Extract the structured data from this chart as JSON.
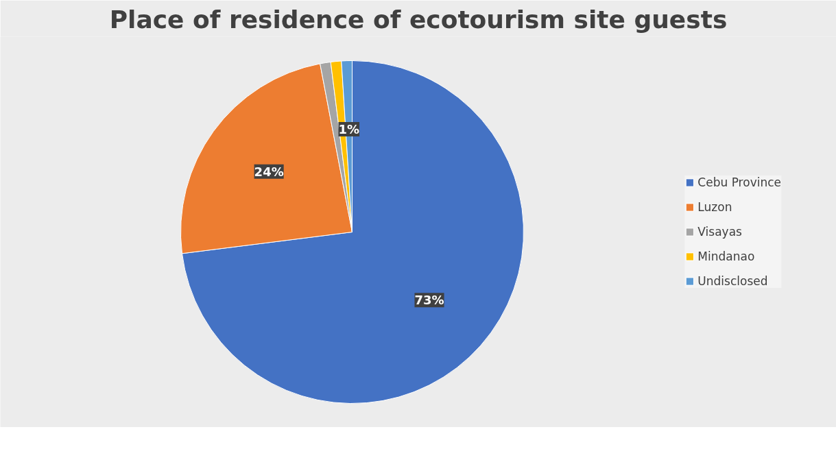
{
  "chart_data": {
    "type": "pie",
    "title": "Place of residence of ecotourism site guests",
    "categories": [
      "Cebu Province",
      "Luzon",
      "Visayas",
      "Mindanao",
      "Undisclosed"
    ],
    "values": [
      73,
      24,
      1,
      1,
      1
    ],
    "colors": [
      "#4472c4",
      "#ed7d31",
      "#a5a5a5",
      "#ffc000",
      "#5b9bd5"
    ],
    "value_labels": [
      "73%",
      "24%",
      null,
      null,
      "1%"
    ],
    "legend": "right"
  }
}
